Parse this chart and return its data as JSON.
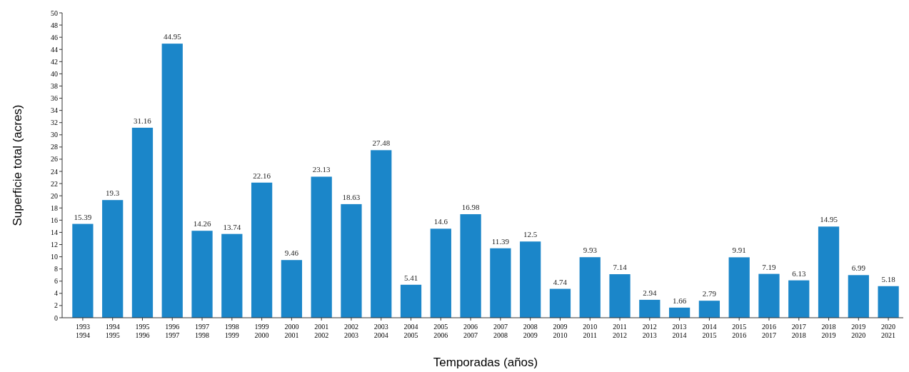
{
  "chart_data": {
    "type": "bar",
    "xlabel": "Temporadas (años)",
    "ylabel": "Superficie total (acres)",
    "categories": [
      "1993\n1994",
      "1994\n1995",
      "1995\n1996",
      "1996\n1997",
      "1997\n1998",
      "1998\n1999",
      "1999\n2000",
      "2000\n2001",
      "2001\n2002",
      "2002\n2003",
      "2003\n2004",
      "2004\n2005",
      "2005\n2006",
      "2006\n2007",
      "2007\n2008",
      "2008\n2009",
      "2009\n2010",
      "2010\n2011",
      "2011\n2012",
      "2012\n2013",
      "2013\n2014",
      "2014\n2015",
      "2015\n2016",
      "2016\n2017",
      "2017\n2018",
      "2018\n2019",
      "2019\n2020",
      "2020\n2021"
    ],
    "values": [
      15.39,
      19.3,
      31.16,
      44.95,
      14.26,
      13.74,
      22.16,
      9.46,
      23.13,
      18.63,
      27.48,
      5.41,
      14.6,
      16.98,
      11.39,
      12.5,
      4.74,
      9.93,
      7.14,
      2.94,
      1.66,
      2.79,
      9.91,
      7.19,
      6.13,
      14.95,
      6.99,
      5.18
    ],
    "color": "#1b86c9",
    "ylim": [
      0,
      50
    ],
    "yticks": [
      0,
      2,
      4,
      6,
      8,
      10,
      12,
      14,
      16,
      18,
      20,
      22,
      24,
      26,
      28,
      30,
      32,
      34,
      36,
      38,
      40,
      42,
      44,
      46,
      48,
      50
    ],
    "data_labels": true,
    "grid": false
  }
}
